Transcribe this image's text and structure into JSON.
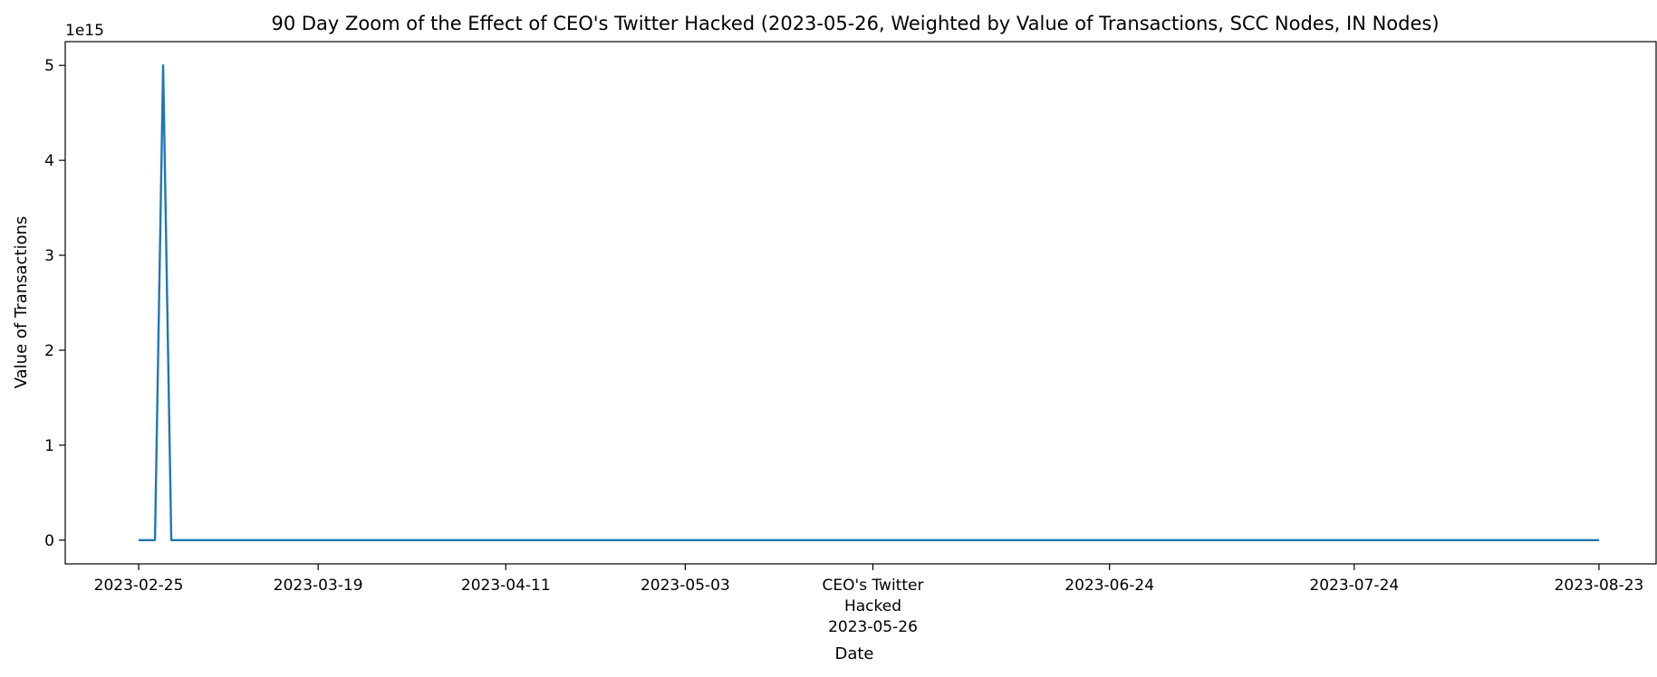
{
  "chart_data": {
    "type": "line",
    "title": "90 Day Zoom of the Effect of CEO's Twitter Hacked (2023-05-26, Weighted by Value of Transactions, SCC Nodes, IN Nodes)",
    "xlabel": "Date",
    "ylabel": "Value of Transactions",
    "y_offset_label": "1e15",
    "y_scale": 1000000000000000.0,
    "xlim": [
      "2023-02-16",
      "2023-08-30"
    ],
    "ylim": [
      -0.25,
      5.25
    ],
    "grid": false,
    "line_color": "#1f77b4",
    "x_ticks": [
      {
        "date": "2023-02-25",
        "lines": [
          "2023-02-25"
        ]
      },
      {
        "date": "2023-03-19",
        "lines": [
          "2023-03-19"
        ]
      },
      {
        "date": "2023-04-11",
        "lines": [
          "2023-04-11"
        ]
      },
      {
        "date": "2023-05-03",
        "lines": [
          "2023-05-03"
        ]
      },
      {
        "date": "2023-05-26",
        "lines": [
          "CEO's Twitter",
          "Hacked",
          "2023-05-26"
        ]
      },
      {
        "date": "2023-06-24",
        "lines": [
          "2023-06-24"
        ]
      },
      {
        "date": "2023-07-24",
        "lines": [
          "2023-07-24"
        ]
      },
      {
        "date": "2023-08-23",
        "lines": [
          "2023-08-23"
        ]
      }
    ],
    "y_ticks": [
      0,
      1,
      2,
      3,
      4,
      5
    ],
    "series": [
      {
        "x": [
          "2023-02-25",
          "2023-02-27",
          "2023-02-28",
          "2023-03-01",
          "2023-08-23"
        ],
        "y": [
          0,
          0,
          5,
          0,
          0
        ]
      }
    ]
  }
}
